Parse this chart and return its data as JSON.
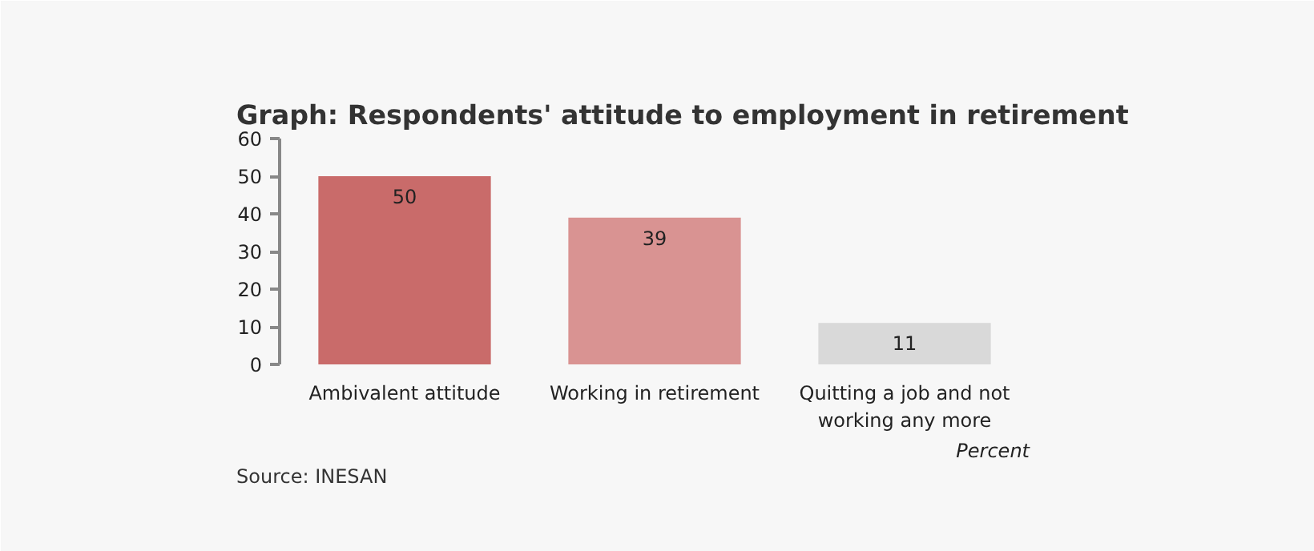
{
  "chart_data": {
    "type": "bar",
    "title": "Graph: Respondents' attitude to employment in retirement",
    "categories": [
      "Ambivalent attitude",
      "Working in retirement",
      "Quitting a job and not working any more"
    ],
    "values": [
      50,
      39,
      11
    ],
    "colors": [
      "#c96b6a",
      "#d99392",
      "#d9d9d9"
    ],
    "ylim": [
      0,
      60
    ],
    "yticks": [
      0,
      10,
      20,
      30,
      40,
      50,
      60
    ],
    "data_labels": true,
    "grid": false,
    "annotations": [
      "Percent",
      "Source: INESAN"
    ]
  }
}
